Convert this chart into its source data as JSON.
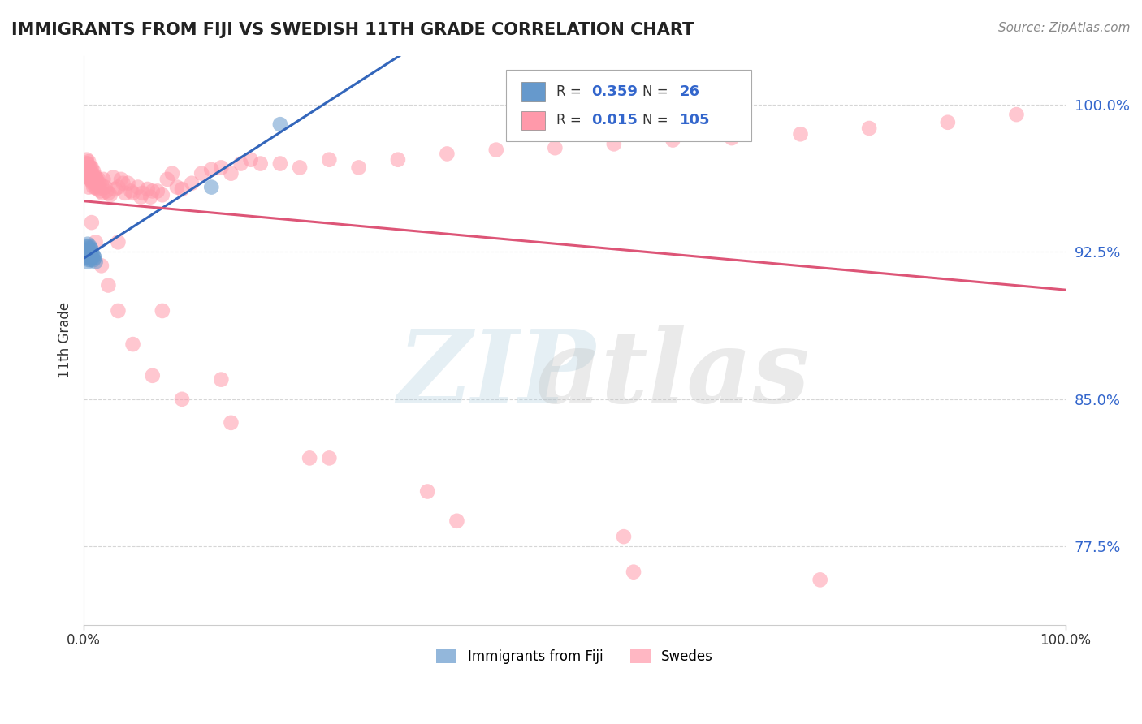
{
  "title": "IMMIGRANTS FROM FIJI VS SWEDISH 11TH GRADE CORRELATION CHART",
  "source_text": "Source: ZipAtlas.com",
  "ylabel": "11th Grade",
  "x_min": 0.0,
  "x_max": 1.0,
  "y_min": 0.735,
  "y_max": 1.025,
  "fiji_R": 0.359,
  "fiji_N": 26,
  "swedish_R": 0.015,
  "swedish_N": 105,
  "fiji_color": "#6699CC",
  "swedish_color": "#FF99AA",
  "fiji_line_color": "#3366BB",
  "swedish_line_color": "#DD5577",
  "grid_color": "#CCCCCC",
  "background_color": "#FFFFFF",
  "title_color": "#222222",
  "ytick_vals": [
    0.775,
    0.85,
    0.925,
    1.0
  ],
  "ytick_labels": [
    "77.5%",
    "85.0%",
    "92.5%",
    "100.0%"
  ],
  "xtick_vals": [
    0.0,
    1.0
  ],
  "xtick_labels": [
    "0.0%",
    "100.0%"
  ],
  "fiji_points_x": [
    0.003,
    0.003,
    0.003,
    0.004,
    0.004,
    0.004,
    0.004,
    0.005,
    0.005,
    0.005,
    0.006,
    0.006,
    0.006,
    0.007,
    0.007,
    0.007,
    0.008,
    0.008,
    0.009,
    0.009,
    0.01,
    0.01,
    0.011,
    0.012,
    0.13,
    0.2
  ],
  "fiji_points_y": [
    0.922,
    0.925,
    0.928,
    0.92,
    0.923,
    0.926,
    0.929,
    0.921,
    0.924,
    0.927,
    0.922,
    0.925,
    0.928,
    0.921,
    0.924,
    0.927,
    0.923,
    0.926,
    0.922,
    0.924,
    0.921,
    0.923,
    0.922,
    0.92,
    0.958,
    0.99
  ],
  "swedish_points_x": [
    0.002,
    0.003,
    0.003,
    0.003,
    0.004,
    0.004,
    0.004,
    0.005,
    0.005,
    0.005,
    0.005,
    0.006,
    0.006,
    0.006,
    0.007,
    0.007,
    0.007,
    0.008,
    0.008,
    0.008,
    0.009,
    0.009,
    0.01,
    0.01,
    0.01,
    0.011,
    0.011,
    0.012,
    0.012,
    0.013,
    0.014,
    0.015,
    0.015,
    0.016,
    0.017,
    0.018,
    0.019,
    0.02,
    0.022,
    0.023,
    0.025,
    0.027,
    0.03,
    0.032,
    0.035,
    0.038,
    0.04,
    0.042,
    0.045,
    0.048,
    0.05,
    0.055,
    0.058,
    0.06,
    0.065,
    0.068,
    0.07,
    0.075,
    0.08,
    0.085,
    0.09,
    0.095,
    0.1,
    0.11,
    0.12,
    0.13,
    0.14,
    0.15,
    0.16,
    0.17,
    0.18,
    0.2,
    0.22,
    0.25,
    0.28,
    0.32,
    0.37,
    0.42,
    0.48,
    0.54,
    0.6,
    0.66,
    0.73,
    0.8,
    0.88,
    0.95,
    0.008,
    0.012,
    0.018,
    0.025,
    0.035,
    0.05,
    0.07,
    0.1,
    0.15,
    0.23,
    0.35,
    0.55,
    0.75,
    0.035,
    0.08,
    0.14,
    0.25,
    0.38,
    0.56
  ],
  "swedish_points_y": [
    0.968,
    0.97,
    0.965,
    0.972,
    0.968,
    0.963,
    0.97,
    0.967,
    0.963,
    0.958,
    0.971,
    0.966,
    0.963,
    0.968,
    0.965,
    0.962,
    0.968,
    0.965,
    0.961,
    0.968,
    0.964,
    0.96,
    0.966,
    0.962,
    0.958,
    0.964,
    0.961,
    0.963,
    0.958,
    0.962,
    0.957,
    0.962,
    0.958,
    0.96,
    0.956,
    0.959,
    0.955,
    0.962,
    0.958,
    0.956,
    0.955,
    0.954,
    0.963,
    0.957,
    0.958,
    0.962,
    0.96,
    0.955,
    0.96,
    0.956,
    0.955,
    0.958,
    0.953,
    0.955,
    0.957,
    0.953,
    0.956,
    0.956,
    0.954,
    0.962,
    0.965,
    0.958,
    0.957,
    0.96,
    0.965,
    0.967,
    0.968,
    0.965,
    0.97,
    0.972,
    0.97,
    0.97,
    0.968,
    0.972,
    0.968,
    0.972,
    0.975,
    0.977,
    0.978,
    0.98,
    0.982,
    0.983,
    0.985,
    0.988,
    0.991,
    0.995,
    0.94,
    0.93,
    0.918,
    0.908,
    0.895,
    0.878,
    0.862,
    0.85,
    0.838,
    0.82,
    0.803,
    0.78,
    0.758,
    0.93,
    0.895,
    0.86,
    0.82,
    0.788,
    0.762
  ]
}
